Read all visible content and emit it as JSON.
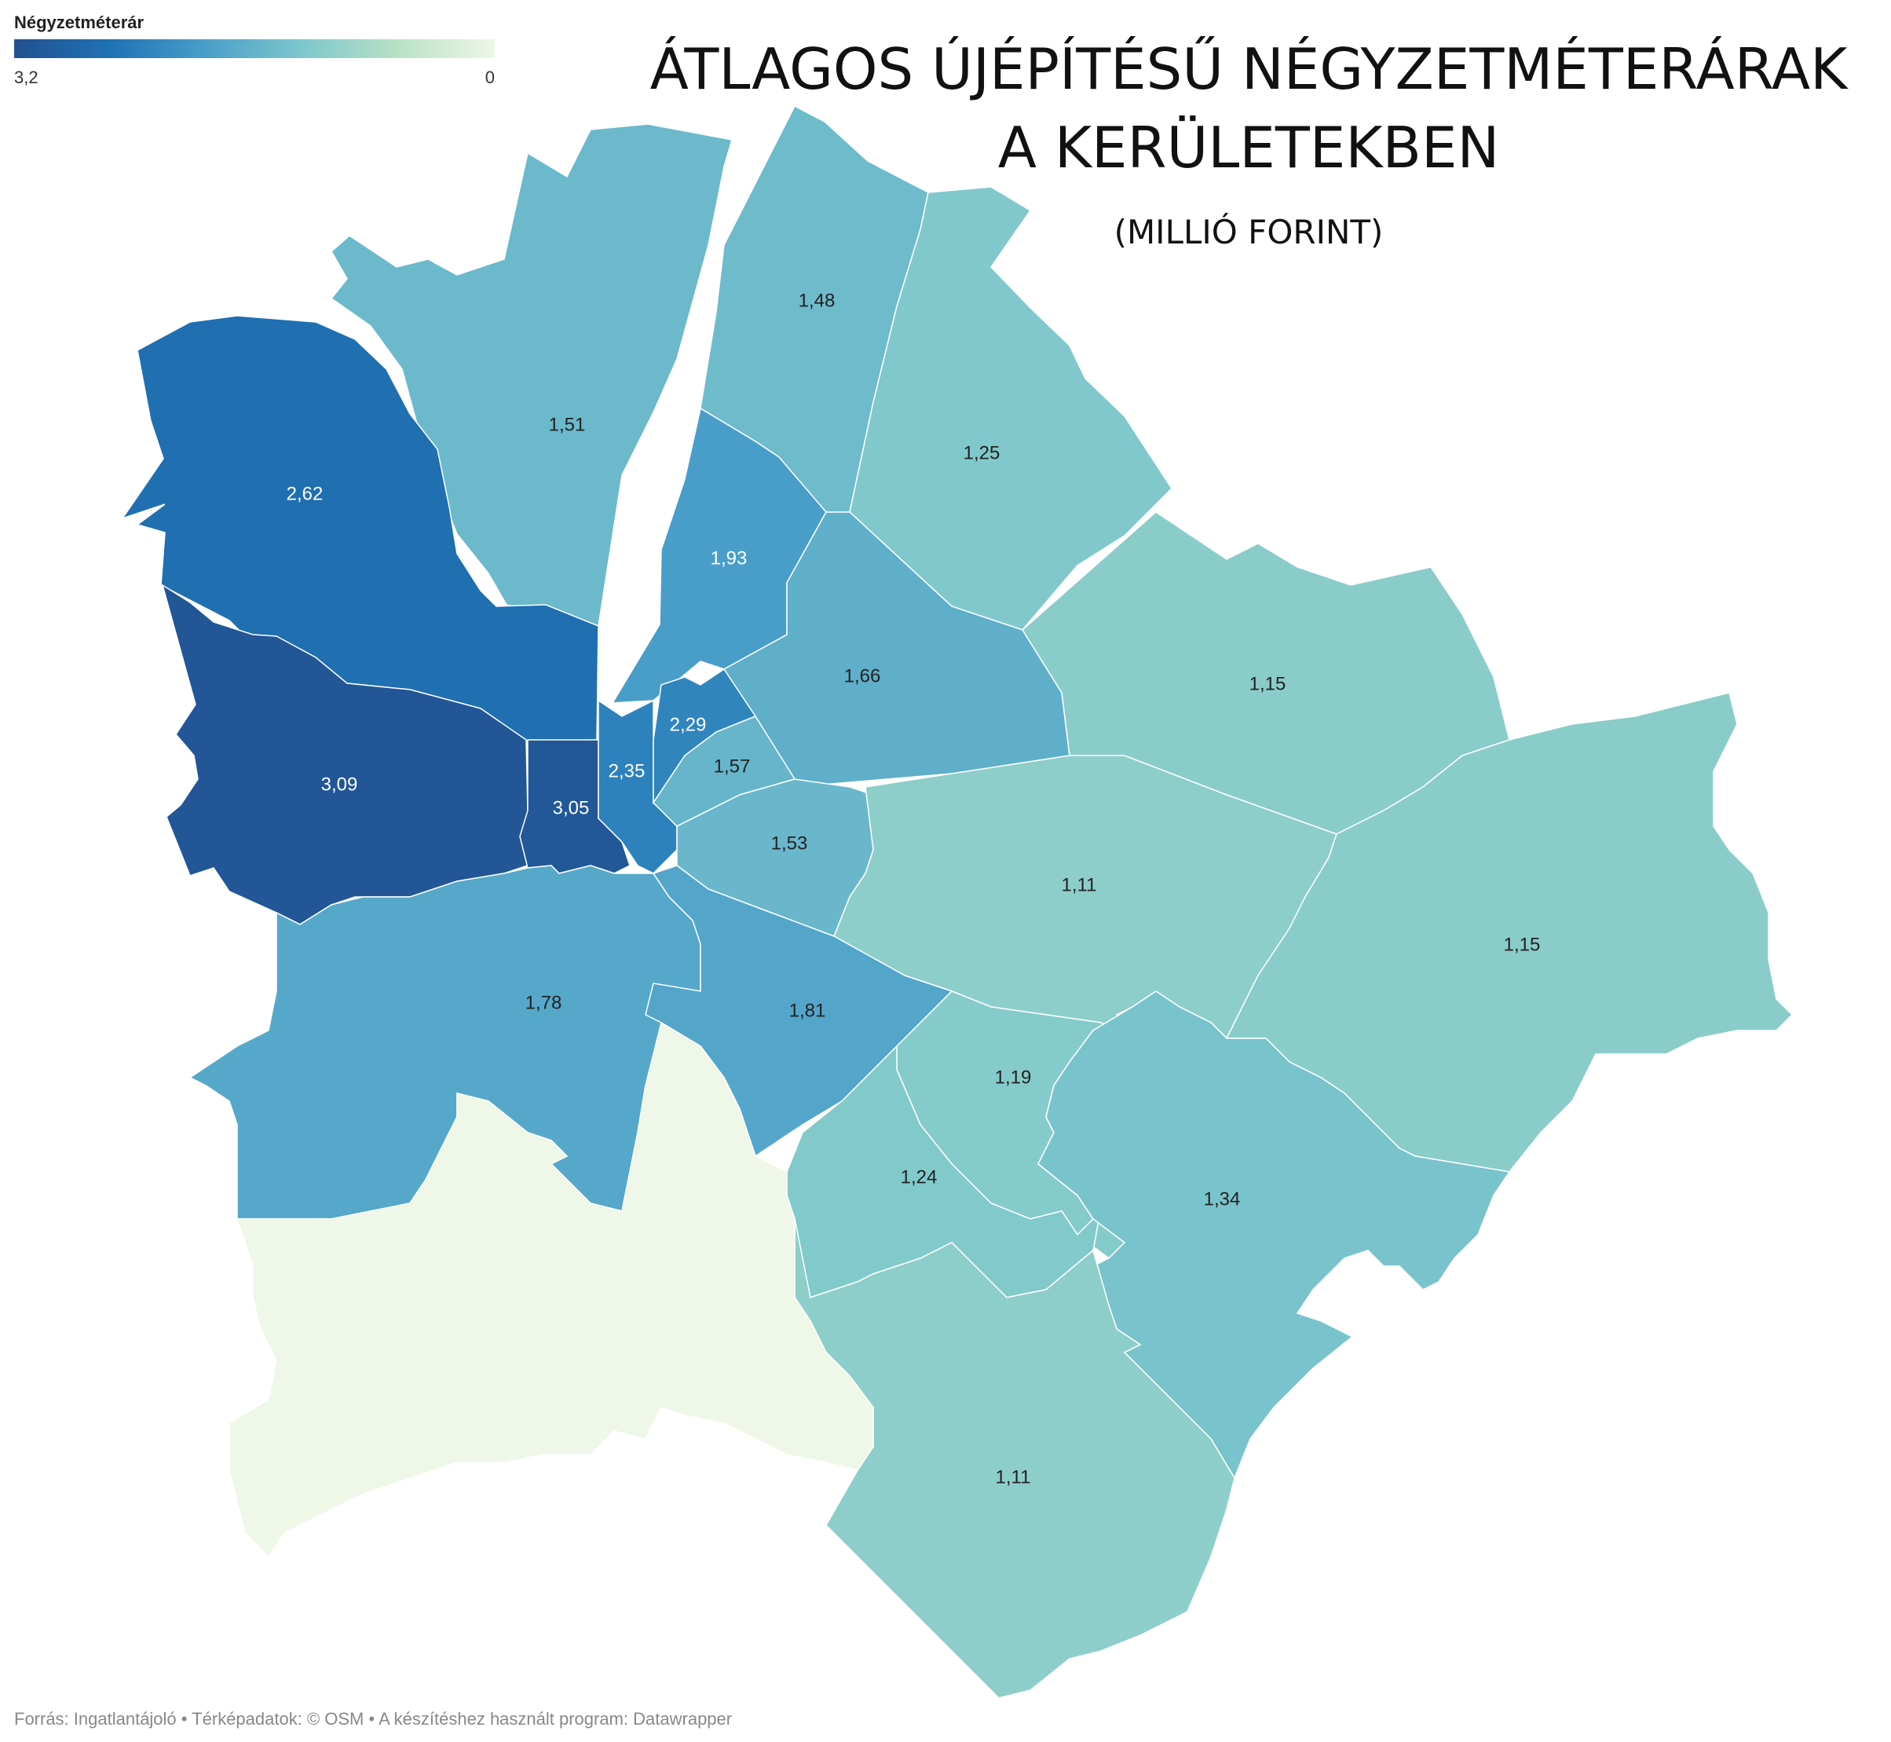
{
  "title": {
    "line1": "ÁTLAGOS ÚJÉPÍTÉSŰ NÉGYZETMÉTERÁRAK",
    "line2": "A KERÜLETEKBEN",
    "subtitle": "(MILLIÓ FORINT)"
  },
  "legend": {
    "title": "Négyzetméterár",
    "max_label": "3,2",
    "min_label": "0",
    "max": 3.2,
    "min": 0,
    "colors": [
      "#23508f",
      "#1f72b5",
      "#4a9fc9",
      "#7ec7cc",
      "#b9e2c4",
      "#eef7e8"
    ]
  },
  "source": "Forrás: Ingatlantájoló • Térképadatok: © OSM  • A készítéshez használt program: Datawrapper",
  "districts": [
    {
      "id": "north-1",
      "label": "1,51",
      "value": 1.51
    },
    {
      "id": "north-2",
      "label": "1,48",
      "value": 1.48
    },
    {
      "id": "north-3",
      "label": "1,25",
      "value": 1.25
    },
    {
      "id": "west-1",
      "label": "2,62",
      "value": 2.62
    },
    {
      "id": "center-1",
      "label": "1,93",
      "value": 1.93
    },
    {
      "id": "center-2",
      "label": "1,66",
      "value": 1.66
    },
    {
      "id": "east-1",
      "label": "1,15",
      "value": 1.15
    },
    {
      "id": "west-2",
      "label": "3,09",
      "value": 3.09
    },
    {
      "id": "west-3",
      "label": "3,05",
      "value": 3.05
    },
    {
      "id": "center-3",
      "label": "2,35",
      "value": 2.35
    },
    {
      "id": "center-4",
      "label": "2,29",
      "value": 2.29
    },
    {
      "id": "center-5",
      "label": "1,57",
      "value": 1.57
    },
    {
      "id": "center-6",
      "label": "1,53",
      "value": 1.53
    },
    {
      "id": "east-2",
      "label": "1,11",
      "value": 1.11
    },
    {
      "id": "east-3",
      "label": "1,15",
      "value": 1.15
    },
    {
      "id": "south-1",
      "label": "1,78",
      "value": 1.78
    },
    {
      "id": "south-2",
      "label": "1,81",
      "value": 1.81
    },
    {
      "id": "south-3",
      "label": "1,19",
      "value": 1.19
    },
    {
      "id": "south-4",
      "label": "1,24",
      "value": 1.24
    },
    {
      "id": "south-5",
      "label": "1,34",
      "value": 1.34
    },
    {
      "id": "south-6",
      "label": "1,11",
      "value": 1.11
    },
    {
      "id": "nodata-1",
      "label": "",
      "value": null
    }
  ]
}
